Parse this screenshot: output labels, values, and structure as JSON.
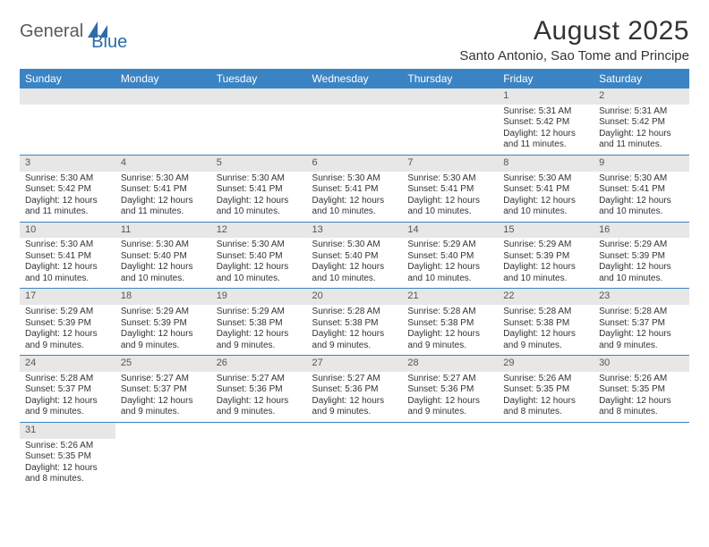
{
  "brand": {
    "part1": "General",
    "part2": "Blue"
  },
  "title": "August 2025",
  "location": "Santo Antonio, Sao Tome and Principe",
  "columns": [
    "Sunday",
    "Monday",
    "Tuesday",
    "Wednesday",
    "Thursday",
    "Friday",
    "Saturday"
  ],
  "colors": {
    "header_bg": "#3b84c4",
    "header_fg": "#ffffff",
    "daynum_bg": "#e7e7e7",
    "row_border": "#3b84c4",
    "accent": "#2c6ca8"
  },
  "weeks": [
    [
      null,
      null,
      null,
      null,
      null,
      {
        "n": "1",
        "sr": "5:31 AM",
        "ss": "5:42 PM",
        "dl": "12 hours and 11 minutes."
      },
      {
        "n": "2",
        "sr": "5:31 AM",
        "ss": "5:42 PM",
        "dl": "12 hours and 11 minutes."
      }
    ],
    [
      {
        "n": "3",
        "sr": "5:30 AM",
        "ss": "5:42 PM",
        "dl": "12 hours and 11 minutes."
      },
      {
        "n": "4",
        "sr": "5:30 AM",
        "ss": "5:41 PM",
        "dl": "12 hours and 11 minutes."
      },
      {
        "n": "5",
        "sr": "5:30 AM",
        "ss": "5:41 PM",
        "dl": "12 hours and 10 minutes."
      },
      {
        "n": "6",
        "sr": "5:30 AM",
        "ss": "5:41 PM",
        "dl": "12 hours and 10 minutes."
      },
      {
        "n": "7",
        "sr": "5:30 AM",
        "ss": "5:41 PM",
        "dl": "12 hours and 10 minutes."
      },
      {
        "n": "8",
        "sr": "5:30 AM",
        "ss": "5:41 PM",
        "dl": "12 hours and 10 minutes."
      },
      {
        "n": "9",
        "sr": "5:30 AM",
        "ss": "5:41 PM",
        "dl": "12 hours and 10 minutes."
      }
    ],
    [
      {
        "n": "10",
        "sr": "5:30 AM",
        "ss": "5:41 PM",
        "dl": "12 hours and 10 minutes."
      },
      {
        "n": "11",
        "sr": "5:30 AM",
        "ss": "5:40 PM",
        "dl": "12 hours and 10 minutes."
      },
      {
        "n": "12",
        "sr": "5:30 AM",
        "ss": "5:40 PM",
        "dl": "12 hours and 10 minutes."
      },
      {
        "n": "13",
        "sr": "5:30 AM",
        "ss": "5:40 PM",
        "dl": "12 hours and 10 minutes."
      },
      {
        "n": "14",
        "sr": "5:29 AM",
        "ss": "5:40 PM",
        "dl": "12 hours and 10 minutes."
      },
      {
        "n": "15",
        "sr": "5:29 AM",
        "ss": "5:39 PM",
        "dl": "12 hours and 10 minutes."
      },
      {
        "n": "16",
        "sr": "5:29 AM",
        "ss": "5:39 PM",
        "dl": "12 hours and 10 minutes."
      }
    ],
    [
      {
        "n": "17",
        "sr": "5:29 AM",
        "ss": "5:39 PM",
        "dl": "12 hours and 9 minutes."
      },
      {
        "n": "18",
        "sr": "5:29 AM",
        "ss": "5:39 PM",
        "dl": "12 hours and 9 minutes."
      },
      {
        "n": "19",
        "sr": "5:29 AM",
        "ss": "5:38 PM",
        "dl": "12 hours and 9 minutes."
      },
      {
        "n": "20",
        "sr": "5:28 AM",
        "ss": "5:38 PM",
        "dl": "12 hours and 9 minutes."
      },
      {
        "n": "21",
        "sr": "5:28 AM",
        "ss": "5:38 PM",
        "dl": "12 hours and 9 minutes."
      },
      {
        "n": "22",
        "sr": "5:28 AM",
        "ss": "5:38 PM",
        "dl": "12 hours and 9 minutes."
      },
      {
        "n": "23",
        "sr": "5:28 AM",
        "ss": "5:37 PM",
        "dl": "12 hours and 9 minutes."
      }
    ],
    [
      {
        "n": "24",
        "sr": "5:28 AM",
        "ss": "5:37 PM",
        "dl": "12 hours and 9 minutes."
      },
      {
        "n": "25",
        "sr": "5:27 AM",
        "ss": "5:37 PM",
        "dl": "12 hours and 9 minutes."
      },
      {
        "n": "26",
        "sr": "5:27 AM",
        "ss": "5:36 PM",
        "dl": "12 hours and 9 minutes."
      },
      {
        "n": "27",
        "sr": "5:27 AM",
        "ss": "5:36 PM",
        "dl": "12 hours and 9 minutes."
      },
      {
        "n": "28",
        "sr": "5:27 AM",
        "ss": "5:36 PM",
        "dl": "12 hours and 9 minutes."
      },
      {
        "n": "29",
        "sr": "5:26 AM",
        "ss": "5:35 PM",
        "dl": "12 hours and 8 minutes."
      },
      {
        "n": "30",
        "sr": "5:26 AM",
        "ss": "5:35 PM",
        "dl": "12 hours and 8 minutes."
      }
    ],
    [
      {
        "n": "31",
        "sr": "5:26 AM",
        "ss": "5:35 PM",
        "dl": "12 hours and 8 minutes."
      },
      null,
      null,
      null,
      null,
      null,
      null
    ]
  ],
  "labels": {
    "sunrise": "Sunrise:",
    "sunset": "Sunset:",
    "daylight": "Daylight:"
  }
}
